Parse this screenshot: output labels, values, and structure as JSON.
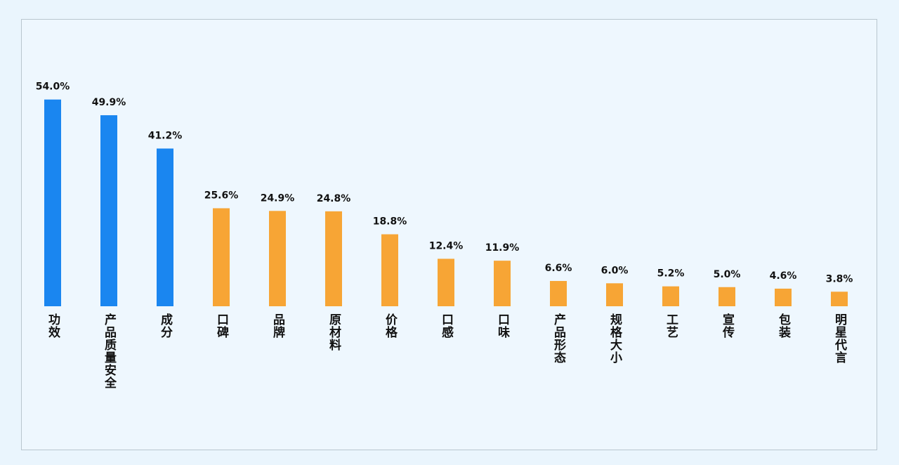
{
  "chart_data": {
    "type": "bar",
    "categories": [
      "功效",
      "产品质量安全",
      "成分",
      "口碑",
      "品牌",
      "原材料",
      "价格",
      "口感",
      "口味",
      "产品形态",
      "规格大小",
      "工艺",
      "宣传",
      "包装",
      "明星代言"
    ],
    "values": [
      54.0,
      49.9,
      41.2,
      25.6,
      24.9,
      24.8,
      18.8,
      12.4,
      11.9,
      6.6,
      6.0,
      5.2,
      5.0,
      4.6,
      3.8
    ],
    "value_labels": [
      "54.0%",
      "49.9%",
      "41.2%",
      "25.6%",
      "24.9%",
      "24.8%",
      "18.8%",
      "12.4%",
      "11.9%",
      "6.6%",
      "6.0%",
      "5.2%",
      "5.0%",
      "4.6%",
      "3.8%"
    ],
    "colors": [
      "#1a86f0",
      "#1a86f0",
      "#1a86f0",
      "#f7a535",
      "#f7a535",
      "#f7a535",
      "#f7a535",
      "#f7a535",
      "#f7a535",
      "#f7a535",
      "#f7a535",
      "#f7a535",
      "#f7a535",
      "#f7a535",
      "#f7a535"
    ]
  }
}
